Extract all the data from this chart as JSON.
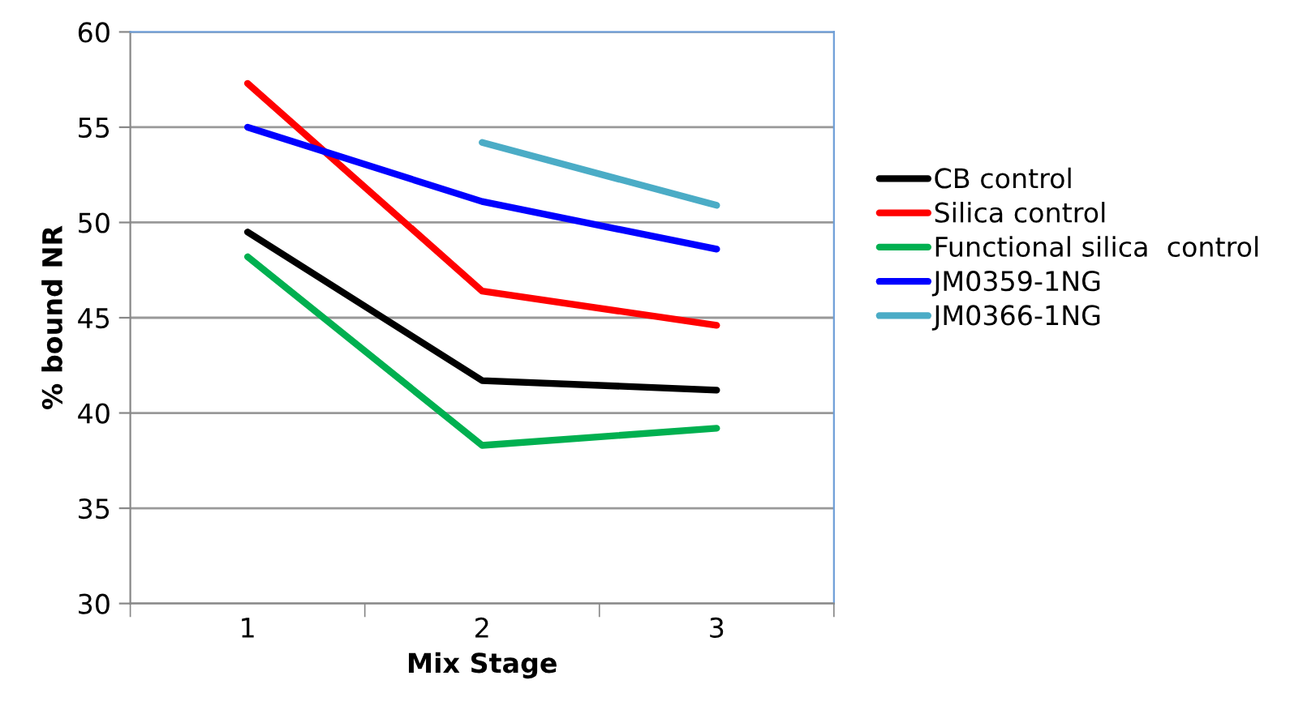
{
  "chart_data": {
    "type": "line",
    "xlabel": "Mix Stage",
    "ylabel": "% bound NR",
    "categories": [
      "1",
      "2",
      "3"
    ],
    "series": [
      {
        "name": "CB control",
        "color": "#000000",
        "values": [
          49.5,
          41.7,
          41.2
        ]
      },
      {
        "name": "Silica control",
        "color": "#ff0000",
        "values": [
          57.3,
          46.4,
          44.6
        ]
      },
      {
        "name": "Functional silica  control",
        "color": "#00b050",
        "values": [
          48.2,
          38.3,
          39.2
        ]
      },
      {
        "name": "JM0359-1NG",
        "color": "#0000ff",
        "values": [
          55.0,
          51.1,
          48.6
        ]
      },
      {
        "name": "JM0366-1NG",
        "color": "#4bacc6",
        "values": [
          null,
          54.2,
          50.9
        ]
      }
    ],
    "ylim": [
      30,
      60
    ],
    "yticks": [
      30,
      35,
      40,
      45,
      50,
      55,
      60
    ],
    "grid": "y",
    "legend": "right",
    "marker": "none",
    "line_style": "solid"
  }
}
